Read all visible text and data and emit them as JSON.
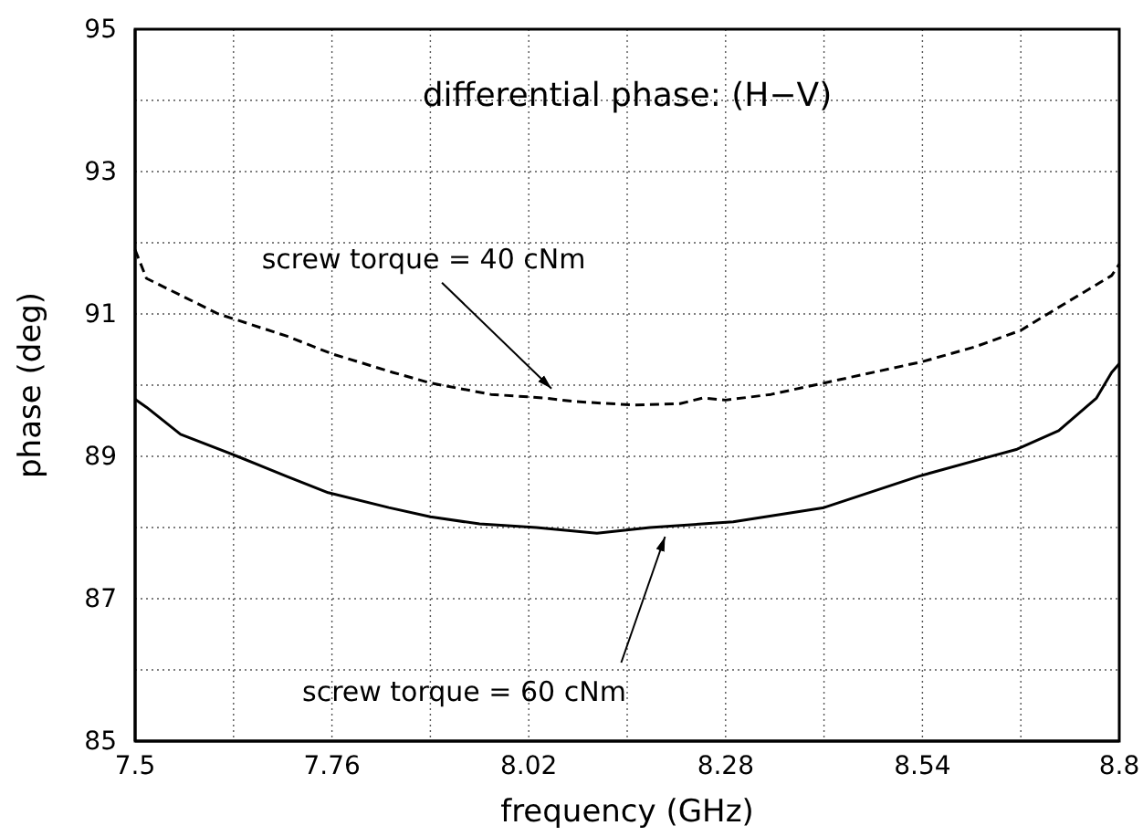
{
  "chart_data": {
    "type": "line",
    "title": "differential phase: (H−V)",
    "xlabel": "frequency (GHz)",
    "ylabel": "phase (deg)",
    "xlim": [
      7.5,
      8.8
    ],
    "ylim": [
      85,
      95
    ],
    "xticks": [
      7.5,
      {
        "value": 7.63,
        "label": null
      },
      7.76,
      {
        "value": 7.89,
        "label": null
      },
      8.02,
      {
        "value": 8.15,
        "label": null
      },
      8.28,
      {
        "value": 8.41,
        "label": null
      },
      8.54,
      {
        "value": 8.67,
        "label": null
      },
      8.8
    ],
    "yticks": [
      85,
      {
        "value": 86,
        "label": null
      },
      87,
      {
        "value": 88,
        "label": null
      },
      89,
      {
        "value": 90,
        "label": null
      },
      91,
      {
        "value": 92,
        "label": null
      },
      93,
      {
        "value": 94,
        "label": null
      },
      95
    ],
    "grid": true,
    "series": [
      {
        "color": "#000000",
        "line_style": "dashed",
        "x": [
          7.5,
          7.515,
          7.61,
          7.7,
          7.76,
          7.84,
          7.89,
          7.97,
          8.04,
          8.08,
          8.16,
          8.22,
          8.25,
          8.28,
          8.34,
          8.41,
          8.54,
          8.61,
          8.67,
          8.71,
          8.79,
          8.8
        ],
        "values": [
          91.9,
          91.5,
          91.0,
          90.69,
          90.44,
          90.18,
          90.03,
          89.87,
          89.82,
          89.77,
          89.72,
          89.74,
          89.82,
          89.79,
          89.87,
          90.03,
          90.33,
          90.54,
          90.77,
          91.03,
          91.54,
          91.7
        ]
      },
      {
        "color": "#000000",
        "line_style": "solid",
        "x": [
          7.5,
          7.515,
          7.56,
          7.635,
          7.7,
          7.755,
          7.835,
          7.89,
          7.955,
          8.03,
          8.11,
          8.18,
          8.29,
          8.41,
          8.535,
          8.62,
          8.665,
          8.72,
          8.77,
          8.79,
          8.8
        ],
        "values": [
          89.8,
          89.69,
          89.31,
          89.0,
          88.72,
          88.49,
          88.28,
          88.15,
          88.05,
          88.0,
          87.92,
          88.0,
          88.08,
          88.28,
          88.72,
          88.97,
          89.1,
          89.36,
          89.82,
          90.18,
          90.3
        ]
      }
    ],
    "annotations": [
      {
        "text": "screw torque = 40 cNm",
        "x": 8.05,
        "y": 89.85
      },
      {
        "text": "screw torque = 60 cNm",
        "x": 8.2,
        "y": 88.0
      }
    ]
  }
}
